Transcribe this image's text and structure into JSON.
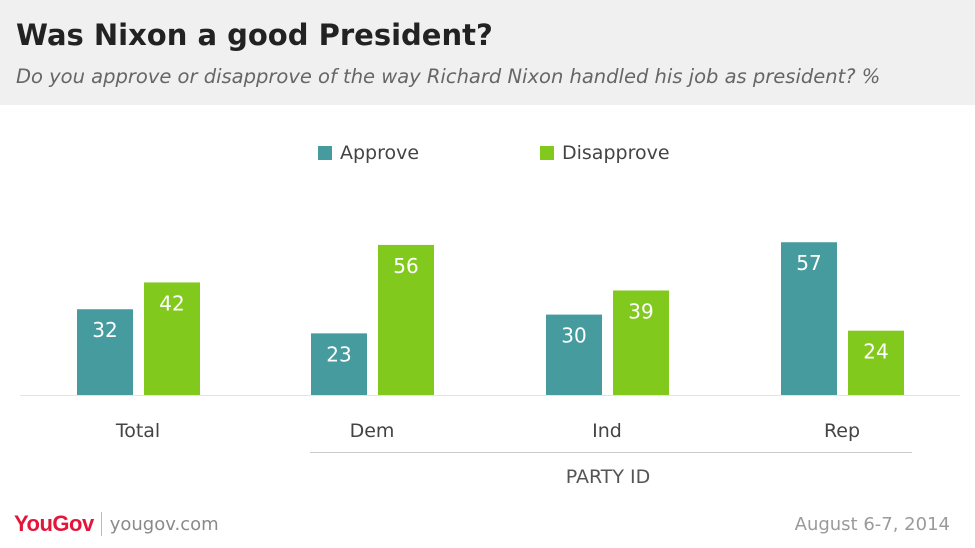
{
  "header": {
    "title": "Was Nixon a good President?",
    "subtitle": "Do you approve or disapprove of the way Richard Nixon handled his job as president? %"
  },
  "colors": {
    "approve": "#459b9e",
    "disapprove": "#82c91e",
    "header_bg": "#f0f0f0",
    "brand": "#e3153a"
  },
  "chart_data": {
    "type": "bar",
    "categories": [
      "Total",
      "Dem",
      "Ind",
      "Rep"
    ],
    "series": [
      {
        "name": "Approve",
        "values": [
          32,
          23,
          30,
          57
        ]
      },
      {
        "name": "Disapprove",
        "values": [
          42,
          56,
          39,
          24
        ]
      }
    ],
    "group_label": "PARTY ID",
    "legend_position": "top-center",
    "grid": false,
    "ylim": [
      0,
      60
    ]
  },
  "footer": {
    "logo_icon": "yougov-logo",
    "logo_text": "YouGov",
    "url": "yougov.com",
    "date": "August 6-7, 2014"
  }
}
